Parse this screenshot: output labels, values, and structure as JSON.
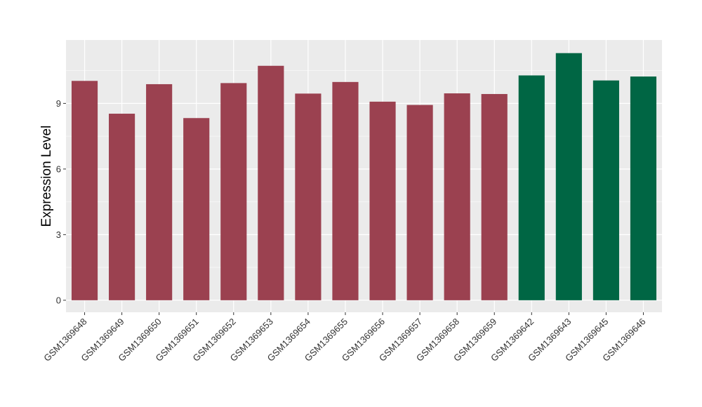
{
  "chart_data": {
    "type": "bar",
    "ylabel": "Expression Level",
    "xlabel": "",
    "ylim": [
      -0.55,
      11.9
    ],
    "yticks": [
      0,
      3,
      6,
      9
    ],
    "grid": true,
    "legend": "none",
    "colors": {
      "group_a": "#9b4150",
      "group_b": "#006644",
      "panel": "#ebebeb",
      "grid": "#ffffff"
    },
    "categories": [
      "GSM1369648",
      "GSM1369649",
      "GSM1369650",
      "GSM1369651",
      "GSM1369652",
      "GSM1369653",
      "GSM1369654",
      "GSM1369655",
      "GSM1369656",
      "GSM1369657",
      "GSM1369658",
      "GSM1369659",
      "GSM1369642",
      "GSM1369643",
      "GSM1369645",
      "GSM1369646"
    ],
    "values": [
      10.03,
      8.53,
      9.88,
      8.33,
      9.93,
      10.72,
      9.45,
      9.98,
      9.08,
      8.93,
      9.46,
      9.43,
      10.28,
      11.3,
      10.05,
      10.23
    ],
    "groups": [
      "a",
      "a",
      "a",
      "a",
      "a",
      "a",
      "a",
      "a",
      "a",
      "a",
      "a",
      "a",
      "b",
      "b",
      "b",
      "b"
    ]
  }
}
